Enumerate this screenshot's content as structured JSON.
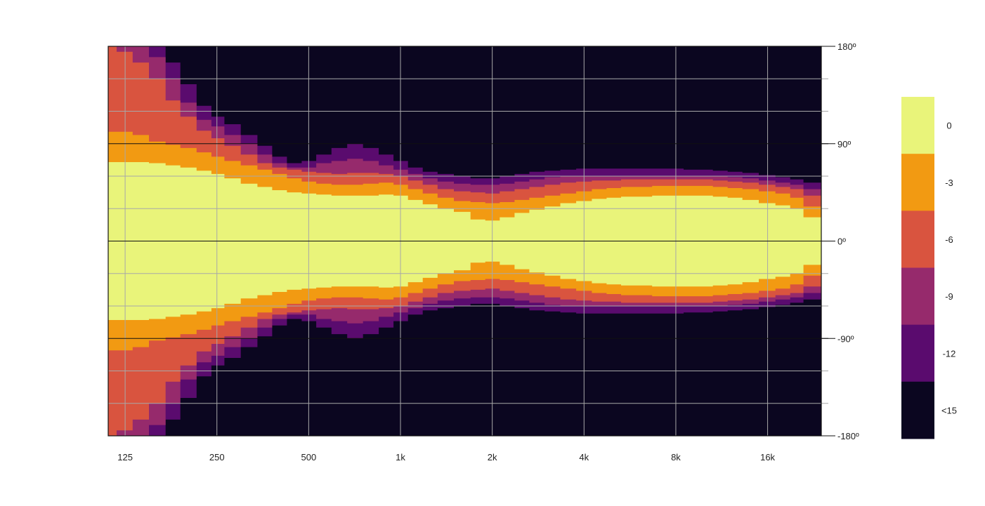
{
  "chart_data": {
    "type": "heatmap",
    "title": "",
    "xlabel": "",
    "ylabel": "",
    "x_scale": "log2",
    "x_ticks": [
      "125",
      "250",
      "500",
      "1k",
      "2k",
      "4k",
      "8k",
      "16k"
    ],
    "x_tick_values": [
      125,
      250,
      500,
      1000,
      2000,
      4000,
      8000,
      16000
    ],
    "xlim": [
      110,
      24000
    ],
    "y_ticks": [
      "180º",
      "90º",
      "0º",
      "-90º",
      "-180º"
    ],
    "y_tick_values": [
      180,
      90,
      0,
      -90,
      -180
    ],
    "ylim": [
      -180,
      180
    ],
    "grid": true,
    "legend": {
      "placement": "right",
      "levels": [
        {
          "label": "0",
          "color": "#e9f47a"
        },
        {
          "label": "-3",
          "color": "#f29a12"
        },
        {
          "label": "-6",
          "color": "#d9543f"
        },
        {
          "label": "-9",
          "color": "#962a6c"
        },
        {
          "label": "-12",
          "color": "#5a0b6e"
        },
        {
          "label": "<15",
          "color": "#0b0620"
        }
      ]
    },
    "contour_half_angle_deg": {
      "frequency_hz": [
        110,
        125,
        140,
        160,
        180,
        200,
        230,
        250,
        280,
        320,
        360,
        400,
        450,
        500,
        560,
        630,
        710,
        800,
        900,
        1000,
        1120,
        1250,
        1400,
        1600,
        1800,
        2000,
        2240,
        2500,
        2800,
        3150,
        3550,
        4000,
        4500,
        5000,
        5600,
        6300,
        7100,
        8000,
        9000,
        10000,
        11200,
        12500,
        14000,
        16000,
        18000,
        20000,
        22000
      ],
      "level_0_db": [
        73,
        73,
        73,
        72,
        70,
        68,
        65,
        62,
        58,
        53,
        50,
        47,
        45,
        44,
        43,
        42,
        42,
        42,
        43,
        42,
        38,
        34,
        30,
        27,
        20,
        19,
        22,
        26,
        29,
        32,
        35,
        37,
        39,
        40,
        41,
        41,
        42,
        42,
        42,
        42,
        41,
        40,
        38,
        35,
        33,
        30,
        22
      ],
      "level_3_db": [
        101,
        101,
        98,
        92,
        89,
        86,
        82,
        78,
        74,
        70,
        66,
        62,
        58,
        55,
        53,
        52,
        52,
        53,
        54,
        52,
        48,
        44,
        40,
        37,
        36,
        35,
        36,
        38,
        40,
        42,
        44,
        46,
        48,
        49,
        50,
        50,
        51,
        51,
        51,
        51,
        50,
        49,
        48,
        46,
        44,
        40,
        32
      ],
      "level_6_db": [
        180,
        175,
        165,
        150,
        130,
        115,
        102,
        95,
        88,
        80,
        72,
        68,
        66,
        64,
        63,
        62,
        63,
        63,
        62,
        60,
        56,
        52,
        48,
        46,
        45,
        44,
        46,
        48,
        50,
        52,
        54,
        55,
        56,
        56,
        57,
        57,
        57,
        57,
        57,
        57,
        56,
        55,
        54,
        52,
        50,
        48,
        42
      ],
      "level_9_db": [
        180,
        180,
        180,
        170,
        150,
        128,
        112,
        106,
        98,
        90,
        80,
        72,
        68,
        68,
        72,
        74,
        76,
        74,
        70,
        66,
        62,
        58,
        55,
        53,
        52,
        52,
        53,
        55,
        57,
        59,
        60,
        60,
        60,
        60,
        60,
        60,
        60,
        60,
        60,
        60,
        60,
        59,
        58,
        56,
        54,
        52,
        48
      ],
      "level_12_db": [
        180,
        180,
        180,
        180,
        165,
        145,
        125,
        115,
        108,
        98,
        88,
        78,
        72,
        74,
        80,
        86,
        90,
        86,
        80,
        74,
        68,
        64,
        62,
        60,
        58,
        58,
        60,
        62,
        64,
        65,
        66,
        67,
        67,
        67,
        67,
        67,
        67,
        67,
        66,
        66,
        65,
        64,
        63,
        61,
        59,
        57,
        54
      ]
    }
  }
}
